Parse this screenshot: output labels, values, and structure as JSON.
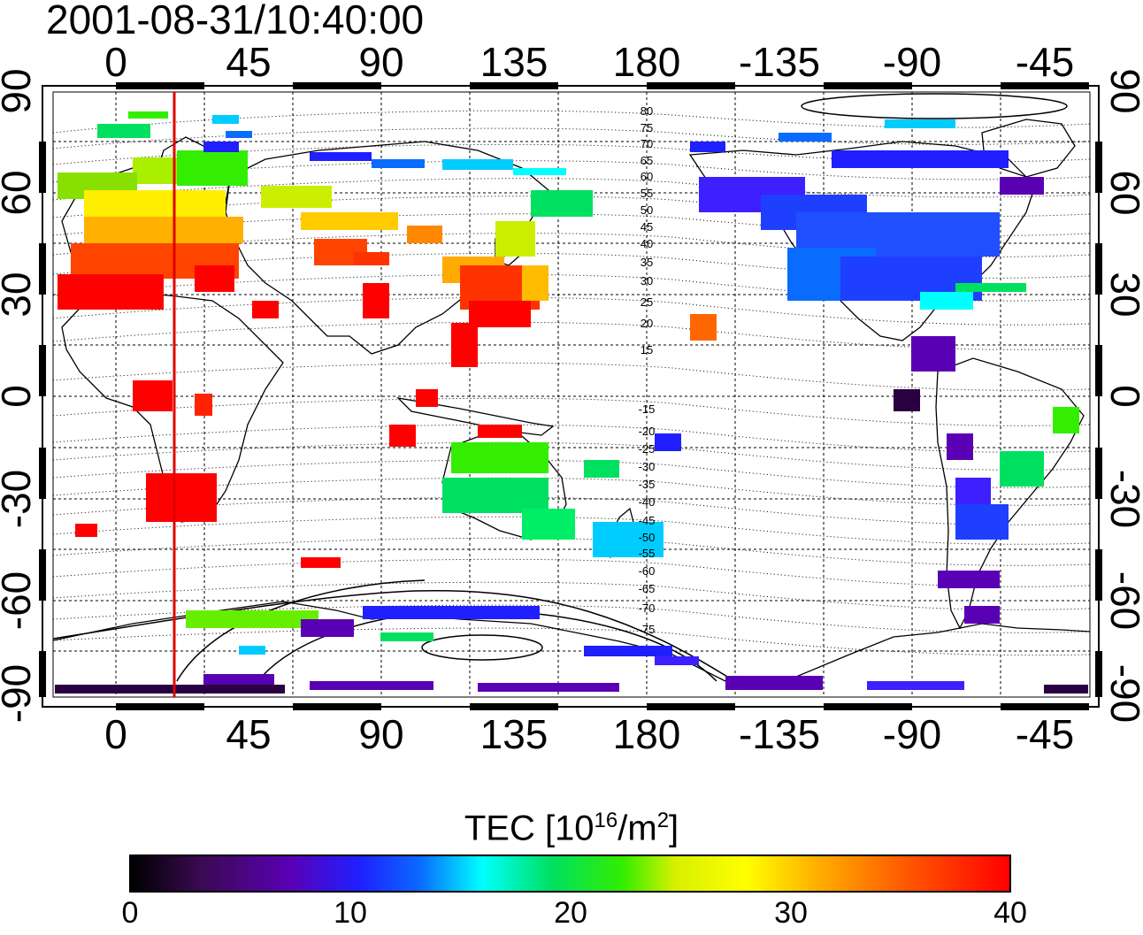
{
  "map": {
    "timestamp": "2001-08-31/10:40:00",
    "lon_tick_labels": [
      "0",
      "45",
      "90",
      "135",
      "180",
      "-135",
      "-90",
      "-45"
    ],
    "lat_tick_labels": [
      "90",
      "60",
      "30",
      "0",
      "-30",
      "-60",
      "-90"
    ],
    "magnetic_latitude_labels": [
      "80",
      "75",
      "70",
      "65",
      "60",
      "55",
      "50",
      "45",
      "40",
      "35",
      "30",
      "25",
      "20",
      "15",
      "-15",
      "-20",
      "-25",
      "-30",
      "-35",
      "-40",
      "-45",
      "-50",
      "-55",
      "-60",
      "-65",
      "-70",
      "-75"
    ],
    "marker_longitude_color": "#e00000"
  },
  "colorbar": {
    "title_prefix": "TEC  [10",
    "title_exp1": "16",
    "title_mid": "/m",
    "title_exp2": "2",
    "title_suffix": "]",
    "tick_labels": [
      "0",
      "10",
      "20",
      "30",
      "40"
    ],
    "colors": [
      "#000000",
      "#5a00b4",
      "#1f1fff",
      "#00ffff",
      "#00e060",
      "#ffff00",
      "#ff5a00",
      "#ff0000"
    ]
  }
}
